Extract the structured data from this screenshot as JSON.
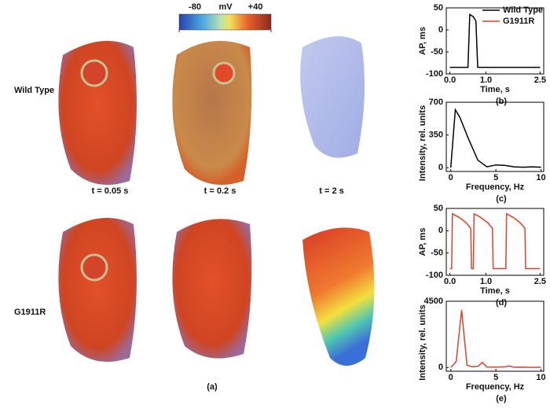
{
  "panel_a": {
    "colorbar": {
      "lim": [
        -80,
        40
      ],
      "ticks": [
        -80,
        {
          "value": 40,
          "label": "+40"
        }
      ],
      "unit": "mV"
    },
    "rows": [
      "Wild Type",
      "G1911R"
    ],
    "times": [
      "t = 0.05 s",
      "t = 0.2 s",
      "t = 2 s"
    ],
    "caption": "(a)"
  },
  "chart_data": [
    {
      "type": "line",
      "caption": "(b)",
      "xlabel": "Time, s",
      "ylabel": "AP, ms",
      "x": [
        0,
        0.5,
        0.55,
        0.65,
        0.72,
        0.77,
        0.82,
        2.5
      ],
      "series": [
        {
          "name": "Wild Type",
          "color": "#000000",
          "values": [
            -85,
            -85,
            35,
            30,
            20,
            -85,
            -85,
            -85
          ]
        }
      ],
      "xlim": [
        -0.1,
        2.6
      ],
      "ylim": [
        -100,
        50
      ],
      "xticks": [
        {
          "value": 0,
          "label": "0.0"
        },
        {
          "value": 1,
          "label": "1.0"
        },
        2.5
      ],
      "yticks": [
        50,
        0,
        -50,
        -100
      ]
    },
    {
      "type": "line",
      "caption": "(c)",
      "xlabel": "Frequency, Hz",
      "ylabel": "Intensity, rel. units",
      "x": [
        0,
        0.5,
        1,
        2,
        3,
        4,
        5,
        6,
        7,
        8,
        9,
        10
      ],
      "series": [
        {
          "color": "#000000",
          "values": [
            0,
            620,
            540,
            300,
            80,
            10,
            30,
            25,
            10,
            5,
            10,
            5
          ]
        }
      ],
      "xlim": [
        -0.5,
        10.3
      ],
      "ylim": [
        -40,
        700
      ],
      "xticks": [
        0,
        5,
        10
      ],
      "yticks": [
        0,
        350,
        700
      ]
    },
    {
      "type": "line",
      "caption": "(d)",
      "xlabel": "Time, s",
      "ylabel": "AP, ms",
      "x": [
        0,
        0.05,
        0.07,
        0.25,
        0.45,
        0.58,
        0.6,
        0.65,
        0.67,
        0.85,
        1.05,
        1.18,
        1.2,
        1.55,
        1.57,
        1.75,
        1.95,
        2.08,
        2.1,
        2.5
      ],
      "series": [
        {
          "name": "G1911R",
          "color": "#e0412c",
          "values": [
            -85,
            -85,
            38,
            30,
            18,
            5,
            -85,
            -85,
            38,
            30,
            18,
            5,
            -85,
            -85,
            38,
            30,
            18,
            5,
            -85,
            -85
          ]
        }
      ],
      "xlim": [
        -0.1,
        2.6
      ],
      "ylim": [
        -100,
        50
      ],
      "xticks": [
        {
          "value": 0,
          "label": "0.0"
        },
        {
          "value": 1,
          "label": "1.0"
        },
        2.5
      ],
      "yticks": [
        50,
        0,
        -50,
        -100
      ]
    },
    {
      "type": "line",
      "caption": "(e)",
      "xlabel": "Frequency, Hz",
      "ylabel": "Intensity, rel. units",
      "x": [
        0,
        0.6,
        1.2,
        1.8,
        2.4,
        3,
        3.5,
        4,
        5,
        6,
        6.5,
        7,
        8,
        9,
        10
      ],
      "series": [
        {
          "color": "#e0412c",
          "values": [
            0,
            400,
            3900,
            150,
            60,
            80,
            350,
            40,
            30,
            60,
            100,
            20,
            30,
            10,
            20
          ]
        }
      ],
      "xlim": [
        -0.5,
        10.3
      ],
      "ylim": [
        -250,
        4500
      ],
      "xticks": [
        0,
        5,
        10
      ],
      "yticks": [
        0,
        4500
      ]
    }
  ]
}
